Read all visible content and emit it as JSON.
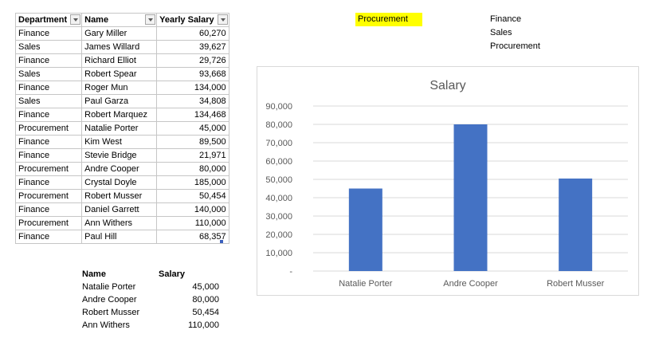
{
  "main_table": {
    "headers": [
      "Department",
      "Name",
      "Yearly Salary"
    ],
    "rows": [
      [
        "Finance",
        "Gary Miller",
        "60,270"
      ],
      [
        "Sales",
        "James Willard",
        "39,627"
      ],
      [
        "Finance",
        "Richard Elliot",
        "29,726"
      ],
      [
        "Sales",
        "Robert Spear",
        "93,668"
      ],
      [
        "Finance",
        "Roger Mun",
        "134,000"
      ],
      [
        "Sales",
        "Paul Garza",
        "34,808"
      ],
      [
        "Finance",
        "Robert Marquez",
        "134,468"
      ],
      [
        "Procurement",
        "Natalie Porter",
        "45,000"
      ],
      [
        "Finance",
        "Kim West",
        "89,500"
      ],
      [
        "Finance",
        "Stevie Bridge",
        "21,971"
      ],
      [
        "Procurement",
        "Andre Cooper",
        "80,000"
      ],
      [
        "Finance",
        "Crystal Doyle",
        "185,000"
      ],
      [
        "Procurement",
        "Robert Musser",
        "50,454"
      ],
      [
        "Finance",
        "Daniel Garrett",
        "140,000"
      ],
      [
        "Procurement",
        "Ann Withers",
        "110,000"
      ],
      [
        "Finance",
        "Paul Hill",
        "68,357"
      ]
    ]
  },
  "summary_table": {
    "headers": [
      "Name",
      "Salary"
    ],
    "rows": [
      [
        "Natalie Porter",
        "45,000"
      ],
      [
        "Andre Cooper",
        "80,000"
      ],
      [
        "Robert Musser",
        "50,454"
      ],
      [
        "Ann Withers",
        "110,000"
      ]
    ]
  },
  "selector": {
    "value": "Procurement",
    "highlight_color": "#ffff00"
  },
  "department_list": [
    "Finance",
    "Sales",
    "Procurement"
  ],
  "chart_data": {
    "type": "bar",
    "title": "Salary",
    "categories": [
      "Natalie Porter",
      "Andre Cooper",
      "Robert Musser"
    ],
    "values": [
      45000,
      80000,
      50454
    ],
    "ylim": [
      0,
      90000
    ],
    "yticks": [
      0,
      10000,
      20000,
      30000,
      40000,
      50000,
      60000,
      70000,
      80000,
      90000
    ],
    "ytick_labels": [
      "-",
      "10,000",
      "20,000",
      "30,000",
      "40,000",
      "50,000",
      "60,000",
      "70,000",
      "80,000",
      "90,000"
    ],
    "grid": true,
    "bar_color": "#4472c4"
  }
}
